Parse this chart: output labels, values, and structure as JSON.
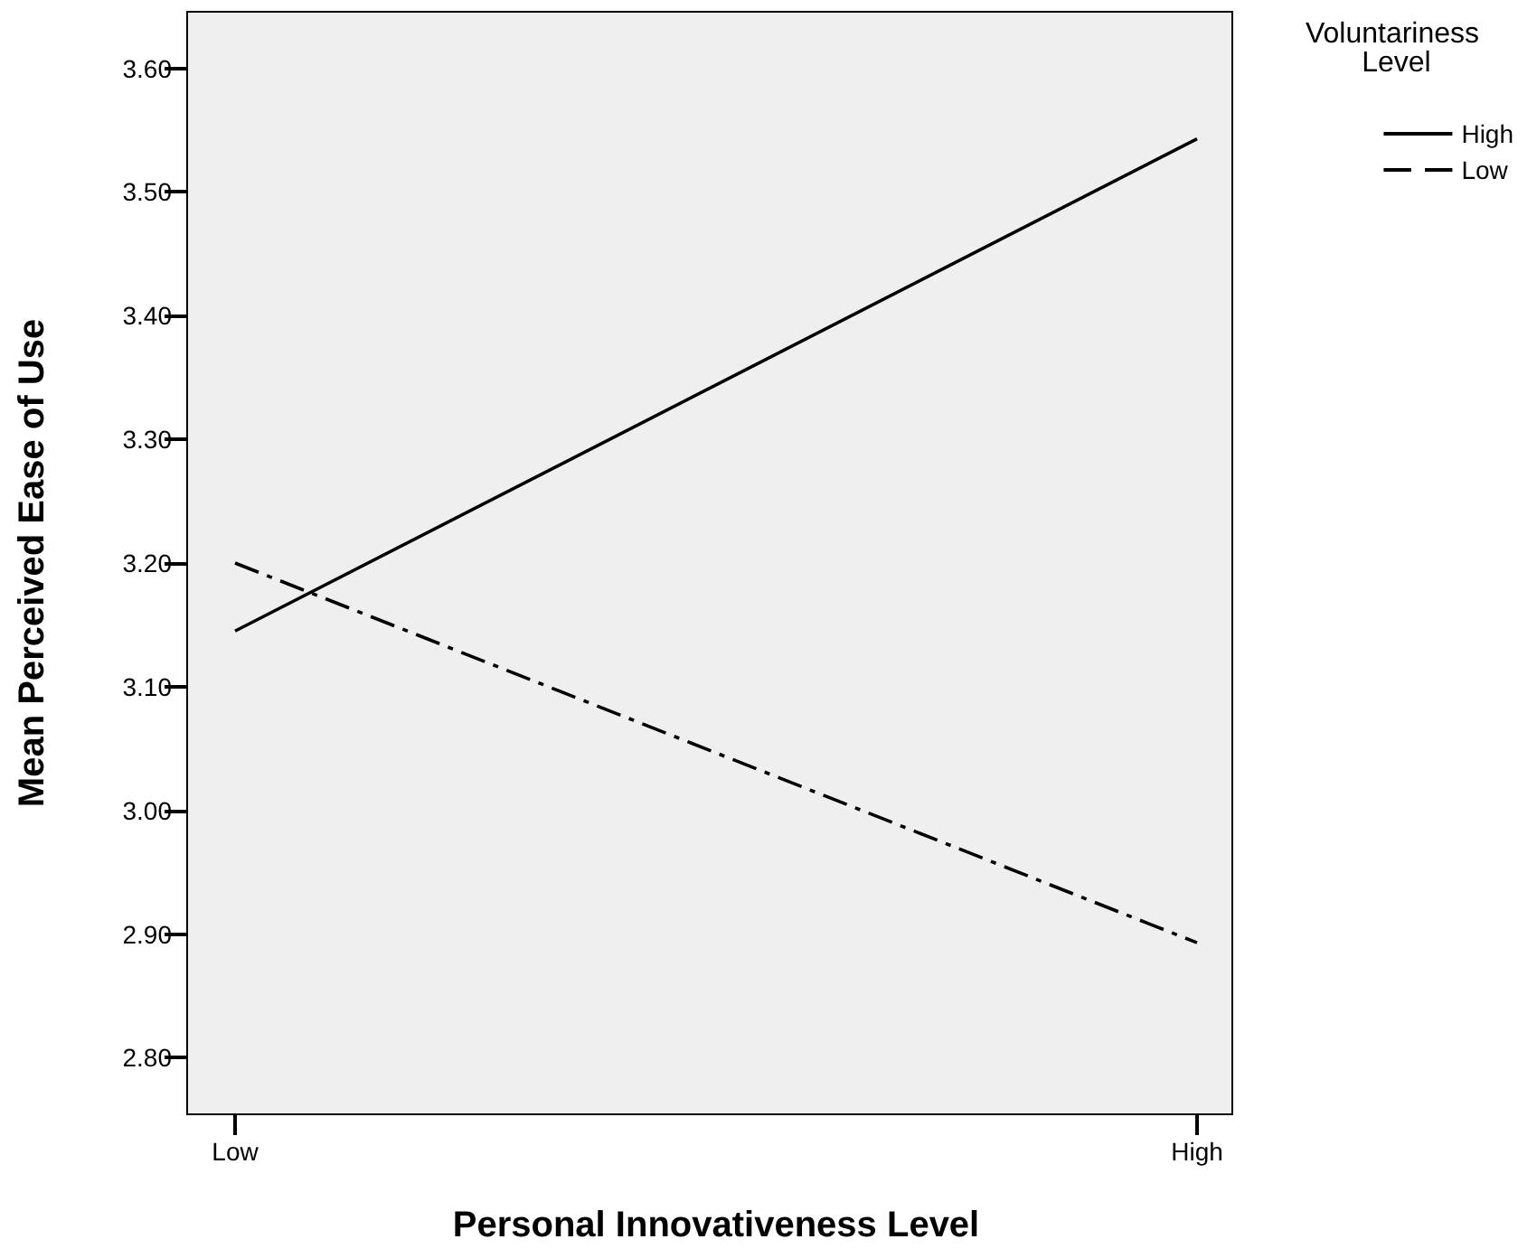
{
  "chart_data": {
    "type": "line",
    "xlabel": "Personal Innovativeness Level",
    "ylabel": "Mean Perceived Ease of Use",
    "legend_title": "Voluntariness Level",
    "categories": [
      "Low",
      "High"
    ],
    "series": [
      {
        "name": "High",
        "color": "#000000",
        "line_style": "solid",
        "values": [
          3.145,
          3.543
        ]
      },
      {
        "name": "Low",
        "color": "#000000",
        "line_style": "dashed",
        "values": [
          3.2,
          2.893
        ]
      }
    ],
    "ylim": [
      2.755,
      3.645
    ],
    "yticks": [
      {
        "value": 2.8,
        "label": "2.80"
      },
      {
        "value": 2.9,
        "label": "2.90"
      },
      {
        "value": 3.0,
        "label": "3.00"
      },
      {
        "value": 3.1,
        "label": "3.10"
      },
      {
        "value": 3.2,
        "label": "3.20"
      },
      {
        "value": 3.3,
        "label": "3.30"
      },
      {
        "value": 3.4,
        "label": "3.40"
      },
      {
        "value": 3.5,
        "label": "3.50"
      },
      {
        "value": 3.6,
        "label": "3.60"
      }
    ],
    "grid": false,
    "legend": "top right",
    "marker": "none"
  }
}
